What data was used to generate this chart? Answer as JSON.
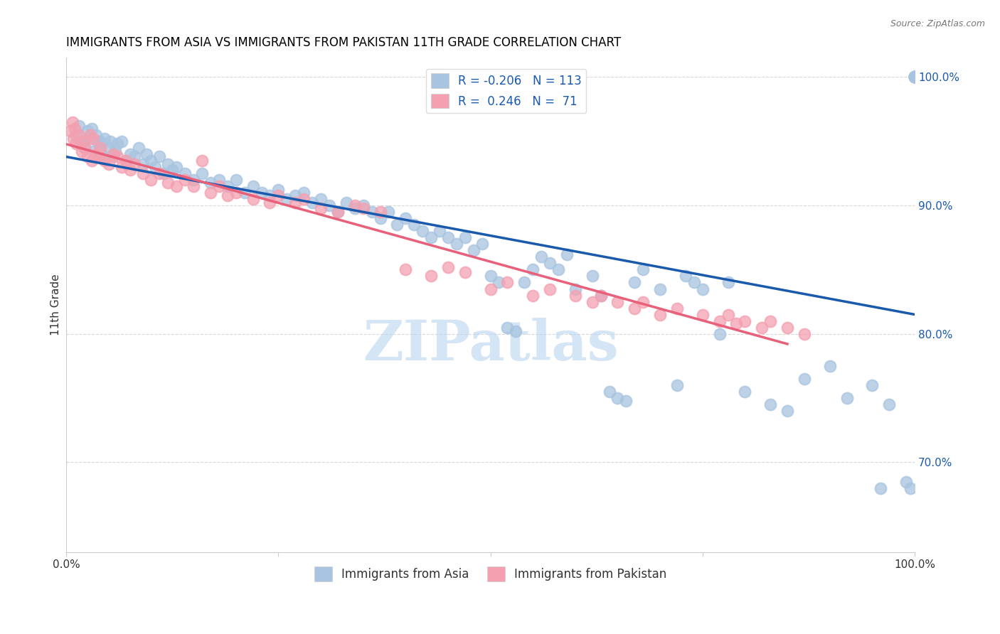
{
  "title": "IMMIGRANTS FROM ASIA VS IMMIGRANTS FROM PAKISTAN 11TH GRADE CORRELATION CHART",
  "source": "Source: ZipAtlas.com",
  "ylabel": "11th Grade",
  "legend_blue_R": "R = -0.206",
  "legend_blue_N": "N = 113",
  "legend_pink_R": "R =  0.246",
  "legend_pink_N": "N =  71",
  "blue_color": "#a8c4e0",
  "pink_color": "#f4a0b0",
  "blue_line_color": "#1a5aad",
  "pink_line_color": "#e8607a",
  "watermark": "ZIPatlas",
  "watermark_color": "#b8d4ef",
  "xmin": 0.0,
  "xmax": 100.0,
  "ymin": 63.0,
  "ymax": 101.5,
  "right_yticks": [
    70.0,
    80.0,
    90.0,
    100.0
  ],
  "grid_color": "#d8d8d8",
  "blue_scatter_x": [
    1.2,
    1.5,
    1.8,
    2.0,
    2.2,
    2.5,
    2.8,
    3.0,
    3.2,
    3.5,
    3.8,
    4.0,
    4.2,
    4.5,
    5.0,
    5.2,
    5.5,
    5.8,
    6.0,
    6.5,
    7.0,
    7.5,
    8.0,
    8.5,
    9.0,
    9.5,
    10.0,
    10.5,
    11.0,
    11.5,
    12.0,
    12.5,
    13.0,
    14.0,
    15.0,
    16.0,
    17.0,
    18.0,
    19.0,
    20.0,
    21.0,
    22.0,
    23.0,
    24.0,
    25.0,
    26.0,
    27.0,
    28.0,
    29.0,
    30.0,
    31.0,
    32.0,
    33.0,
    34.0,
    35.0,
    36.0,
    37.0,
    38.0,
    39.0,
    40.0,
    41.0,
    42.0,
    43.0,
    44.0,
    45.0,
    46.0,
    47.0,
    48.0,
    49.0,
    50.0,
    51.0,
    52.0,
    53.0,
    54.0,
    55.0,
    56.0,
    57.0,
    58.0,
    59.0,
    60.0,
    62.0,
    63.0,
    64.0,
    65.0,
    66.0,
    67.0,
    68.0,
    70.0,
    72.0,
    73.0,
    74.0,
    75.0,
    77.0,
    78.0,
    80.0,
    83.0,
    85.0,
    87.0,
    90.0,
    92.0,
    95.0,
    96.0,
    97.0,
    99.0,
    99.5,
    100.0,
    100.0,
    100.0,
    100.0,
    100.0,
    100.0,
    100.0,
    100.0
  ],
  "blue_scatter_y": [
    95.5,
    96.2,
    94.8,
    95.0,
    94.5,
    95.8,
    95.2,
    96.0,
    94.2,
    95.5,
    94.8,
    95.0,
    94.0,
    95.2,
    94.5,
    95.0,
    93.8,
    94.2,
    94.8,
    95.0,
    93.5,
    94.0,
    93.8,
    94.5,
    93.2,
    94.0,
    93.5,
    93.0,
    93.8,
    92.5,
    93.2,
    92.8,
    93.0,
    92.5,
    92.0,
    92.5,
    91.8,
    92.0,
    91.5,
    92.0,
    91.0,
    91.5,
    91.0,
    90.8,
    91.2,
    90.5,
    90.8,
    91.0,
    90.2,
    90.5,
    90.0,
    89.5,
    90.2,
    89.8,
    90.0,
    89.5,
    89.0,
    89.5,
    88.5,
    89.0,
    88.5,
    88.0,
    87.5,
    88.0,
    87.5,
    87.0,
    87.5,
    86.5,
    87.0,
    84.5,
    84.0,
    80.5,
    80.2,
    84.0,
    85.0,
    86.0,
    85.5,
    85.0,
    86.2,
    83.5,
    84.5,
    83.0,
    75.5,
    75.0,
    74.8,
    84.0,
    85.0,
    83.5,
    76.0,
    84.5,
    84.0,
    83.5,
    80.0,
    84.0,
    75.5,
    74.5,
    74.0,
    76.5,
    77.5,
    75.0,
    76.0,
    68.0,
    74.5,
    68.5,
    68.0,
    100.0,
    100.0,
    100.0,
    100.0,
    100.0,
    100.0,
    100.0,
    100.0
  ],
  "pink_scatter_x": [
    0.5,
    0.7,
    0.8,
    1.0,
    1.2,
    1.5,
    1.8,
    2.0,
    2.2,
    2.5,
    2.8,
    3.0,
    3.2,
    3.5,
    3.8,
    4.0,
    4.5,
    5.0,
    5.5,
    6.0,
    6.5,
    7.0,
    7.5,
    8.0,
    9.0,
    10.0,
    11.0,
    12.0,
    13.0,
    14.0,
    15.0,
    16.0,
    17.0,
    18.0,
    19.0,
    20.0,
    22.0,
    24.0,
    25.0,
    27.0,
    28.0,
    30.0,
    32.0,
    34.0,
    35.0,
    37.0,
    40.0,
    43.0,
    45.0,
    47.0,
    50.0,
    52.0,
    55.0,
    57.0,
    60.0,
    62.0,
    63.0,
    65.0,
    67.0,
    68.0,
    70.0,
    72.0,
    75.0,
    77.0,
    78.0,
    79.0,
    80.0,
    82.0,
    83.0,
    85.0,
    87.0
  ],
  "pink_scatter_y": [
    95.8,
    96.5,
    95.2,
    96.0,
    94.8,
    95.5,
    94.2,
    95.0,
    94.5,
    93.8,
    95.5,
    93.5,
    95.2,
    94.0,
    93.8,
    94.5,
    93.5,
    93.2,
    94.0,
    93.8,
    93.0,
    93.5,
    92.8,
    93.2,
    92.5,
    92.0,
    92.5,
    91.8,
    91.5,
    92.0,
    91.5,
    93.5,
    91.0,
    91.5,
    90.8,
    91.0,
    90.5,
    90.2,
    90.8,
    90.2,
    90.5,
    89.8,
    89.5,
    90.0,
    89.8,
    89.5,
    85.0,
    84.5,
    85.2,
    84.8,
    83.5,
    84.0,
    83.0,
    83.5,
    83.0,
    82.5,
    83.0,
    82.5,
    82.0,
    82.5,
    81.5,
    82.0,
    81.5,
    81.0,
    81.5,
    80.8,
    81.0,
    80.5,
    81.0,
    80.5,
    80.0
  ]
}
